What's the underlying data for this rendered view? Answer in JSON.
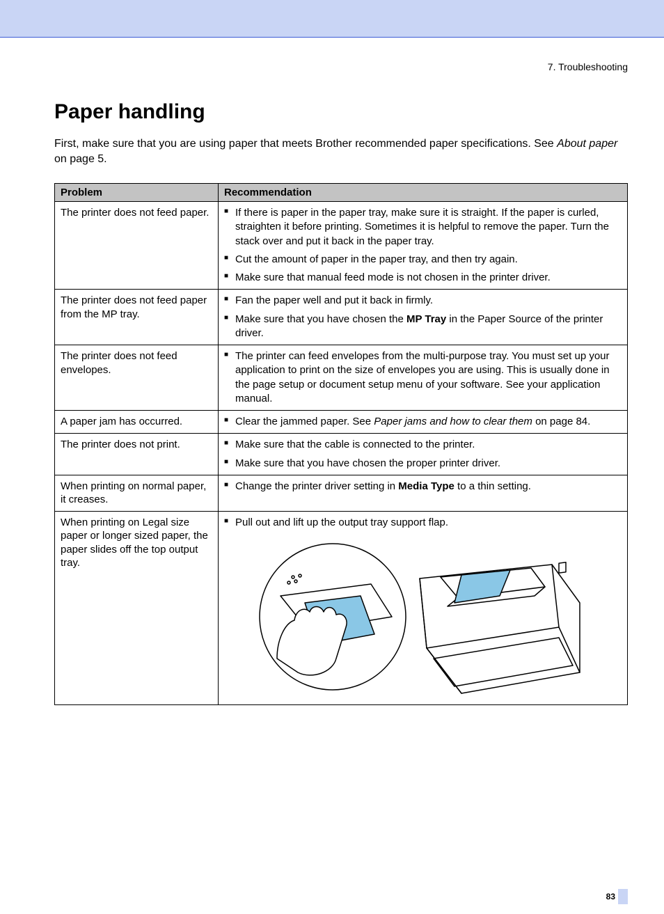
{
  "chapter": "7. Troubleshooting",
  "heading": "Paper handling",
  "intro": {
    "pre": "First, make sure that you are using paper that meets Brother recommended paper specifications. See ",
    "link": "About paper",
    "post": " on page 5."
  },
  "table": {
    "headers": {
      "problem": "Problem",
      "recommendation": "Recommendation"
    },
    "rows": [
      {
        "problem": "The printer does not feed paper.",
        "recs": [
          {
            "text": "If there is paper in the paper tray, make sure it is straight. If the paper is curled, straighten it before printing. Sometimes it is helpful to remove the paper. Turn the stack over and put it back in the paper tray."
          },
          {
            "text": "Cut the amount of paper in the paper tray, and then try again."
          },
          {
            "text": "Make sure that manual feed mode is not chosen in the printer driver."
          }
        ]
      },
      {
        "problem": "The printer does not feed paper from the MP tray.",
        "recs": [
          {
            "text": "Fan the paper well and put it back in firmly."
          },
          {
            "pre": "Make sure that you have chosen the ",
            "bold": "MP Tray",
            "post": " in the Paper Source of the printer driver."
          }
        ]
      },
      {
        "problem": "The printer does not feed envelopes.",
        "recs": [
          {
            "text": "The printer can feed envelopes from the multi-purpose tray. You must set up your application to print on the size of envelopes you are using. This is usually done in the page setup or document setup menu of your software. See your application manual."
          }
        ]
      },
      {
        "problem": "A paper jam has occurred.",
        "recs": [
          {
            "pre": "Clear the jammed paper. See ",
            "em": "Paper jams and how to clear them",
            "post": " on page 84."
          }
        ]
      },
      {
        "problem": "The printer does not print.",
        "recs": [
          {
            "text": "Make sure that the cable is connected to the printer."
          },
          {
            "text": "Make sure that you have chosen the proper printer driver."
          }
        ]
      },
      {
        "problem": "When printing on normal paper, it creases.",
        "recs": [
          {
            "pre": "Change the printer driver setting in ",
            "bold": "Media Type",
            "post": " to a thin setting."
          }
        ]
      },
      {
        "problem": "When printing on Legal size paper or longer sized paper, the paper slides off the top output tray.",
        "recs": [
          {
            "text": "Pull out and lift up the output tray support flap."
          }
        ],
        "illustration": true
      }
    ]
  },
  "page_number": "83",
  "colors": {
    "header_bg": "#c9d5f5",
    "header_border": "#3b5bd6",
    "table_header_bg": "#c3c3c3",
    "illus_accent": "#8ac7e6"
  }
}
